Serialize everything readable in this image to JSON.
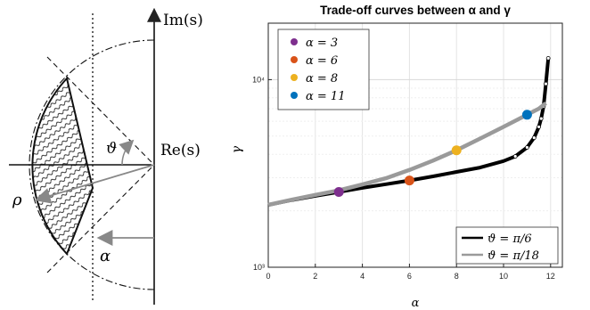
{
  "diagram": {
    "imag_axis_label": "Im(s)",
    "real_axis_label": "Re(s)",
    "angle_label": "ϑ",
    "radius_label": "ρ",
    "shift_label": "α"
  },
  "chart_data": {
    "type": "line",
    "title": "Trade-off curves between α and γ",
    "xlabel": "α",
    "ylabel": "γ",
    "xlim": [
      0,
      12.5
    ],
    "ylim": [
      1000,
      20000
    ],
    "yscale": "log",
    "xticks": [
      "0",
      "2",
      "4",
      "6",
      "8",
      "10",
      "12"
    ],
    "yticks": [
      {
        "value": 1000,
        "label": "10³"
      },
      {
        "value": 10000,
        "label": "10⁴"
      }
    ],
    "grid": true,
    "markers_legend_placement": "top-left",
    "lines_legend_placement": "bottom-right",
    "series": [
      {
        "name": "ϑ = π/6",
        "color": "#000000",
        "x": [
          0,
          1,
          2,
          3,
          4,
          5,
          6,
          7,
          8,
          9,
          10,
          10.5,
          11,
          11.3,
          11.5,
          11.6,
          11.7,
          11.8,
          11.9
        ],
        "y": [
          2150,
          2280,
          2400,
          2520,
          2650,
          2770,
          2900,
          3050,
          3220,
          3400,
          3680,
          3900,
          4350,
          4900,
          5600,
          6200,
          7200,
          9500,
          13000
        ]
      },
      {
        "name": "ϑ = π/18",
        "color": "#9a9a9a",
        "x": [
          0,
          1,
          2,
          3,
          4,
          5,
          6,
          7,
          8,
          9,
          10,
          11,
          11.5,
          11.8
        ],
        "y": [
          2150,
          2290,
          2430,
          2570,
          2760,
          2980,
          3300,
          3700,
          4200,
          4850,
          5600,
          6500,
          7000,
          7500
        ]
      }
    ],
    "markers": [
      {
        "name": "α = 3",
        "color": "#7e2f8e",
        "x": 3,
        "y": 2520
      },
      {
        "name": "α = 6",
        "color": "#d95319",
        "x": 6,
        "y": 2900
      },
      {
        "name": "α = 8",
        "color": "#edb120",
        "x": 8,
        "y": 4200
      },
      {
        "name": "α = 11",
        "color": "#0072bd",
        "x": 11,
        "y": 6500
      }
    ]
  }
}
